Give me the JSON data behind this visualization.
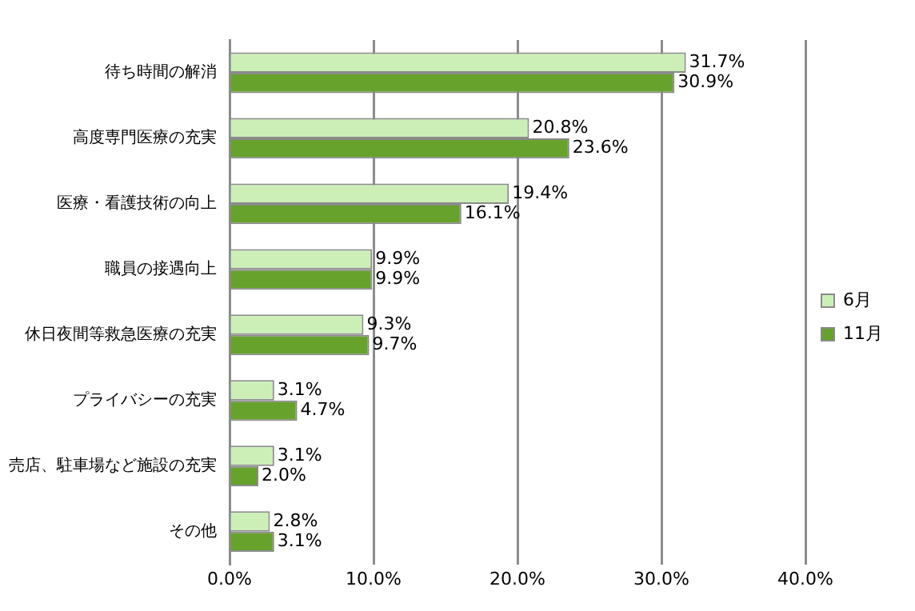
{
  "chart_data": {
    "type": "bar",
    "orientation": "horizontal",
    "categories": [
      "待ち時間の解消",
      "高度専門医療の充実",
      "医療・看護技術の向上",
      "職員の接遇向上",
      "休日夜間等救急医療の充実",
      "プライバシーの充実",
      "売店、駐車場など施設の充実",
      "その他"
    ],
    "series": [
      {
        "name": "6月",
        "color": "#ccefb8",
        "values": [
          31.7,
          20.8,
          19.4,
          9.9,
          9.3,
          3.1,
          3.1,
          2.8
        ],
        "value_labels": [
          "31.7%",
          "20.8%",
          "19.4%",
          "9.9%",
          "9.3%",
          "3.1%",
          "3.1%",
          "2.8%"
        ]
      },
      {
        "name": "11月",
        "color": "#66a22c",
        "values": [
          30.9,
          23.6,
          16.1,
          9.9,
          9.7,
          4.7,
          2.0,
          3.1
        ],
        "value_labels": [
          "30.9%",
          "23.6%",
          "16.1%",
          "9.9%",
          "9.7%",
          "4.7%",
          "2.0%",
          "3.1%"
        ]
      }
    ],
    "xlim": [
      0,
      40
    ],
    "xticks": [
      {
        "value": 0,
        "label": "0.0%"
      },
      {
        "value": 10,
        "label": "10.0%"
      },
      {
        "value": 20,
        "label": "20.0%"
      },
      {
        "value": 30,
        "label": "30.0%"
      },
      {
        "value": 40,
        "label": "40.0%"
      }
    ],
    "grid": "x",
    "legend": "right"
  }
}
